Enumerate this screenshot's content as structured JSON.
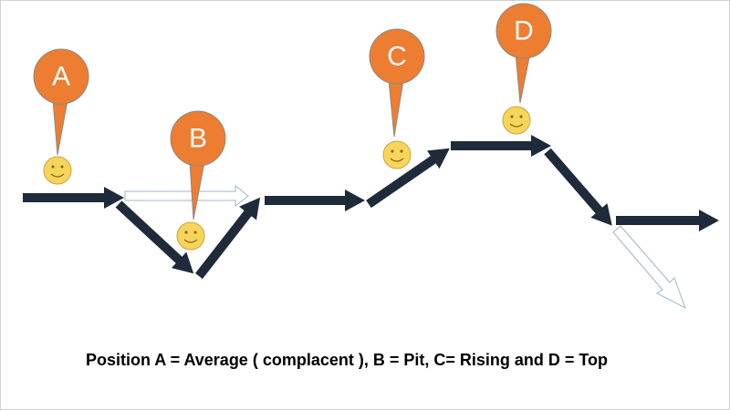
{
  "callouts": [
    {
      "label": "A"
    },
    {
      "label": "B"
    },
    {
      "label": "C"
    },
    {
      "label": "D"
    }
  ],
  "caption": "Position A = Average ( complacent ), B = Pit, C= Rising and D = Top"
}
